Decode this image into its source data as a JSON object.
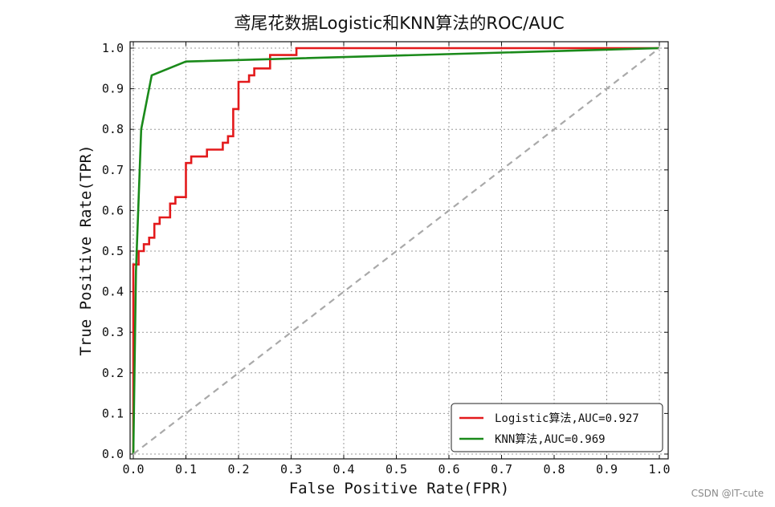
{
  "chart_data": {
    "type": "line",
    "title": "鸢尾花数据Logistic和KNN算法的ROC/AUC",
    "xlabel": "False Positive Rate(FPR)",
    "ylabel": "True Positive Rate(TPR)",
    "xlim": [
      0,
      1.0
    ],
    "ylim": [
      0,
      1.0
    ],
    "xticks": [
      "0.0",
      "0.1",
      "0.2",
      "0.3",
      "0.4",
      "0.5",
      "0.6",
      "0.7",
      "0.8",
      "0.9",
      "1.0"
    ],
    "yticks": [
      "0.0",
      "0.1",
      "0.2",
      "0.3",
      "0.4",
      "0.5",
      "0.6",
      "0.7",
      "0.8",
      "0.9",
      "1.0"
    ],
    "grid": true,
    "legend_position": "lower-right",
    "series": [
      {
        "name": "Logistic算法,AUC=0.927",
        "color": "#e31a1c",
        "x": [
          0,
          0,
          0.005,
          0.005,
          0.01,
          0.01,
          0.02,
          0.02,
          0.03,
          0.03,
          0.04,
          0.04,
          0.05,
          0.05,
          0.07,
          0.07,
          0.08,
          0.08,
          0.1,
          0.1,
          0.11,
          0.11,
          0.14,
          0.14,
          0.17,
          0.17,
          0.18,
          0.18,
          0.19,
          0.19,
          0.2,
          0.2,
          0.22,
          0.22,
          0.23,
          0.23,
          0.24,
          0.24,
          0.26,
          0.26,
          0.31,
          0.31,
          0.33,
          1.0
        ],
        "y": [
          0,
          0.467,
          0.467,
          0.467,
          0.467,
          0.5,
          0.5,
          0.517,
          0.517,
          0.533,
          0.533,
          0.567,
          0.567,
          0.583,
          0.583,
          0.617,
          0.617,
          0.633,
          0.633,
          0.717,
          0.717,
          0.733,
          0.733,
          0.75,
          0.75,
          0.767,
          0.767,
          0.783,
          0.783,
          0.85,
          0.85,
          0.917,
          0.917,
          0.933,
          0.933,
          0.95,
          0.95,
          0.95,
          0.95,
          0.983,
          0.983,
          1.0,
          1.0,
          1.0
        ]
      },
      {
        "name": "KNN算法,AUC=0.969",
        "color": "#1a8a1a",
        "x": [
          0,
          0.005,
          0.015,
          0.035,
          0.1,
          1.0
        ],
        "y": [
          0,
          0.45,
          0.8,
          0.933,
          0.967,
          1.0
        ]
      },
      {
        "name": "",
        "color": "#a9a9a9",
        "dashed": true,
        "x": [
          0,
          1.0
        ],
        "y": [
          0,
          1.0
        ]
      }
    ]
  },
  "watermark": "CSDN @IT-cute"
}
